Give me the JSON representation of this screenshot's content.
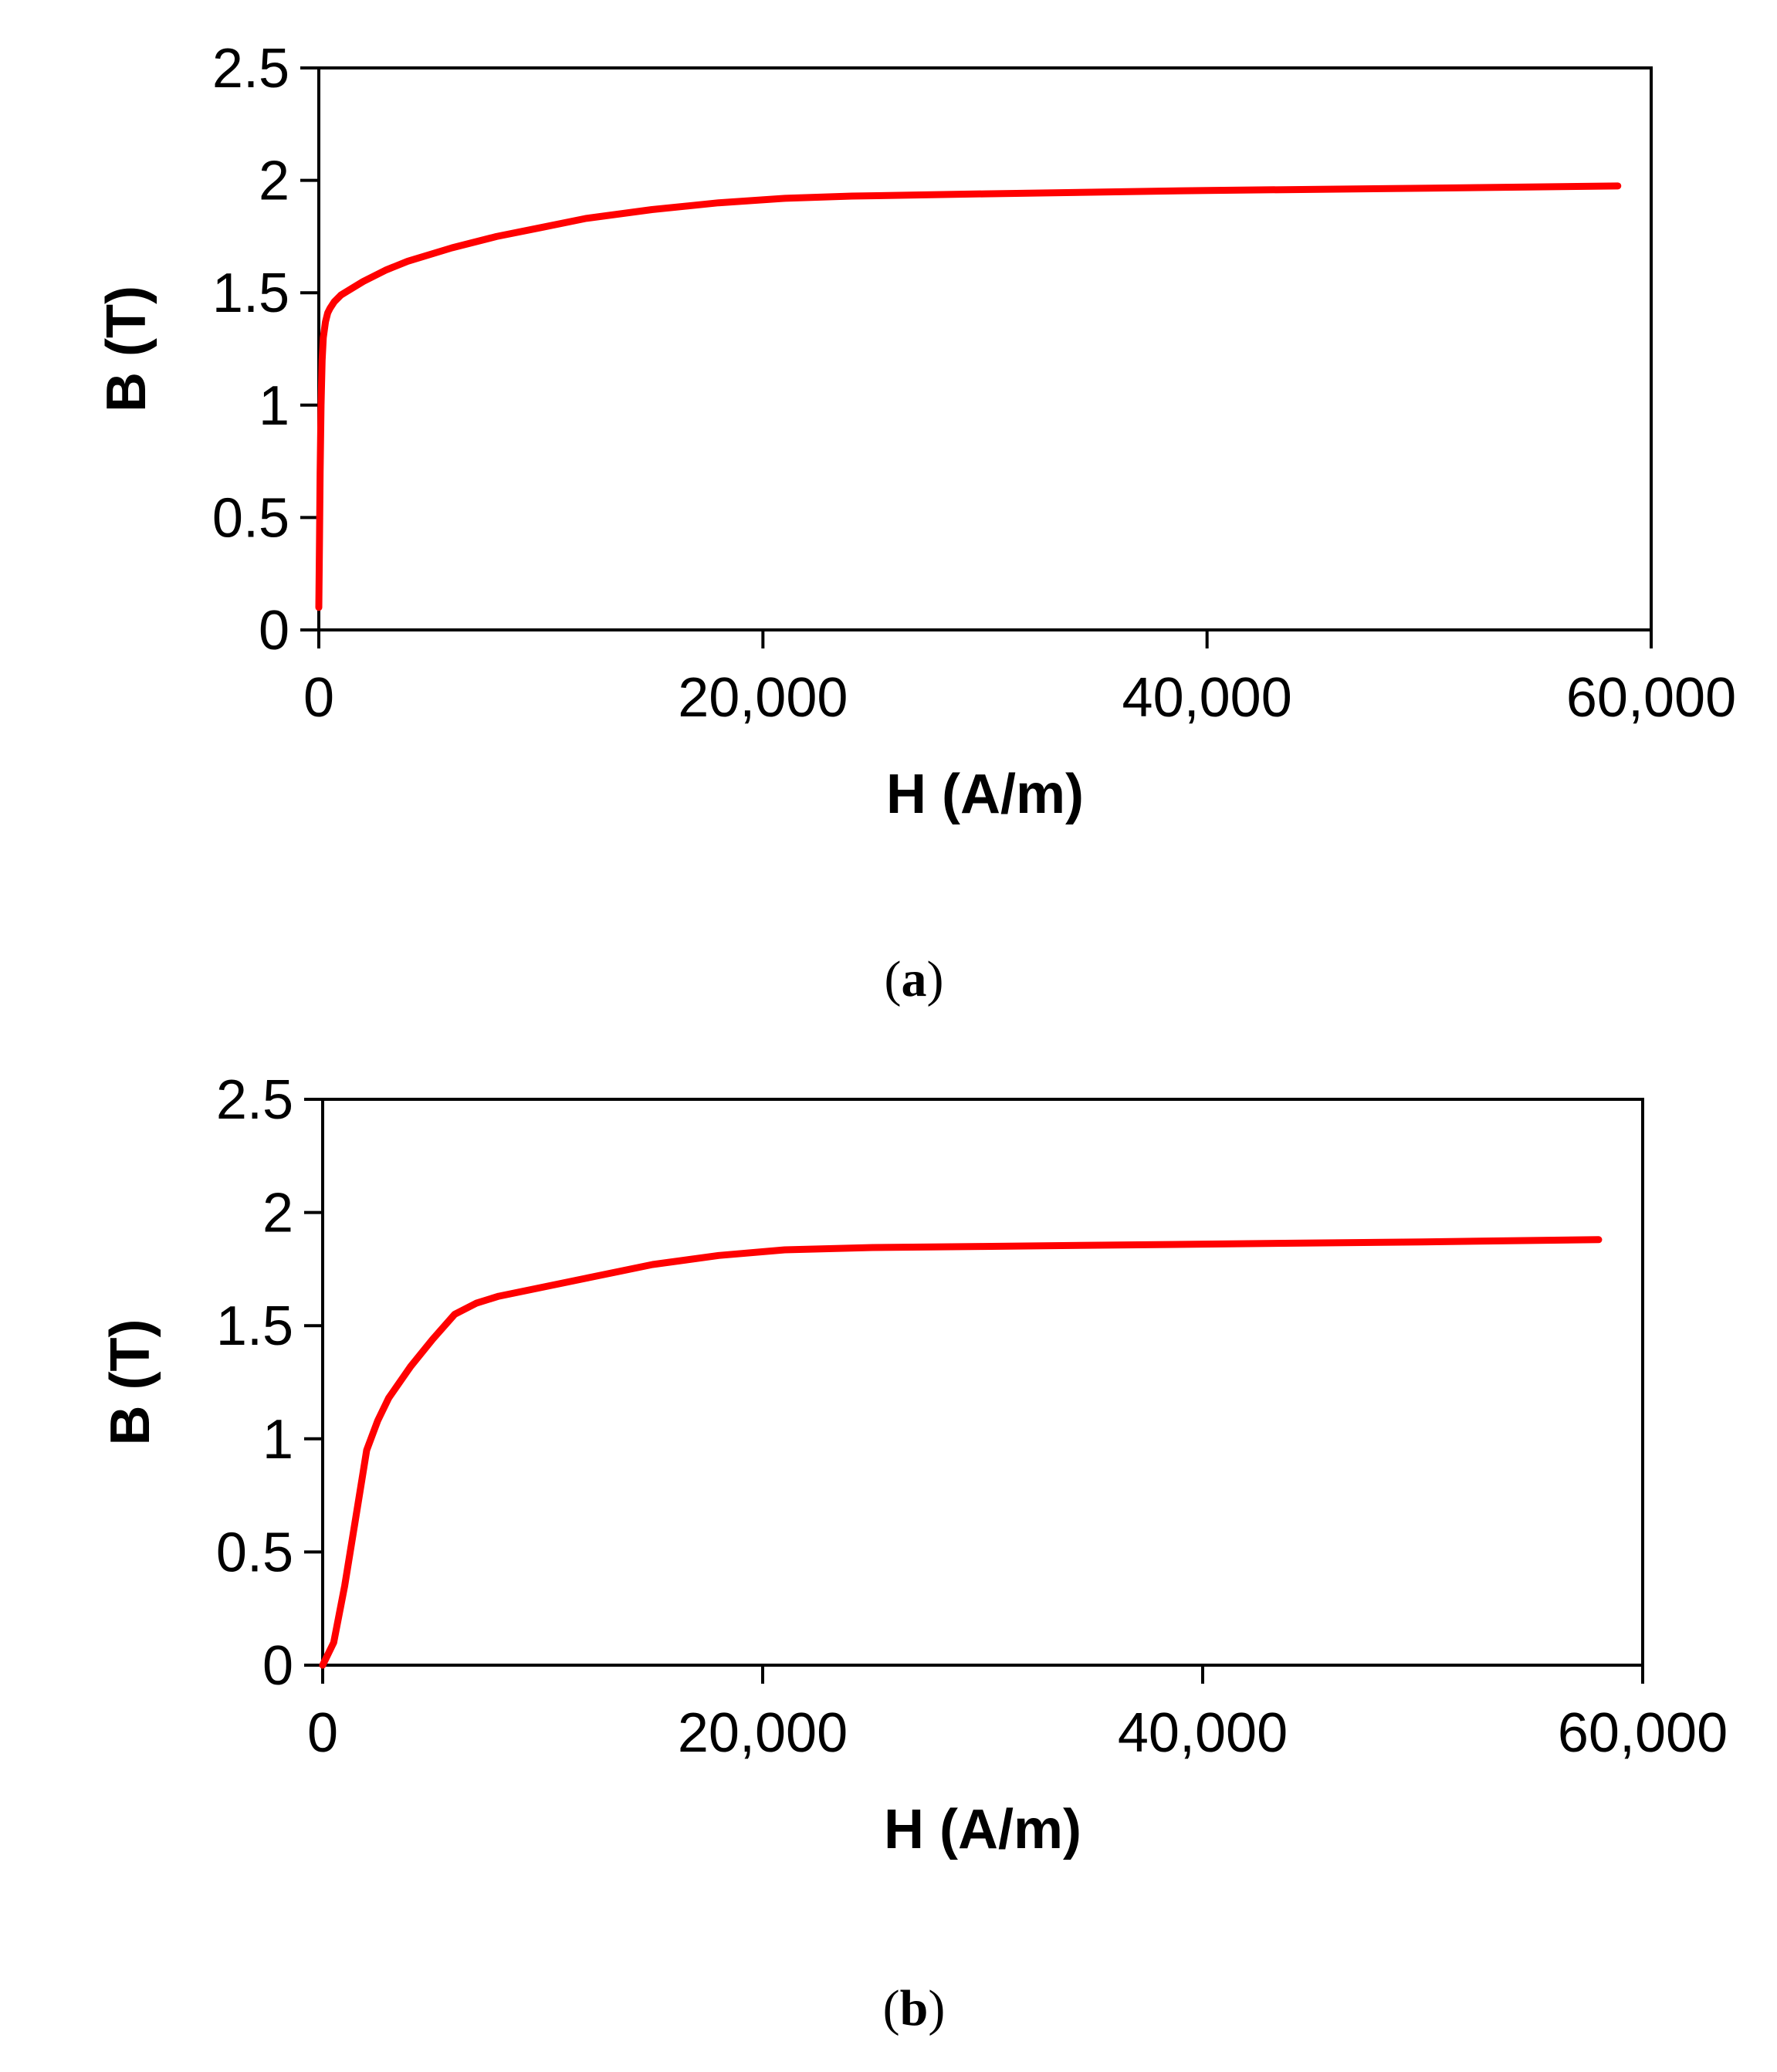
{
  "chart_data": [
    {
      "type": "line",
      "caption_letter": "a",
      "xlabel": "H (A/m)",
      "ylabel": "B (T)",
      "xlim": [
        0,
        60000
      ],
      "ylim": [
        0,
        2.5
      ],
      "x_ticks": [
        0,
        20000,
        40000,
        60000
      ],
      "x_tick_labels": [
        "0",
        "20,000",
        "40,000",
        "60,000"
      ],
      "y_ticks": [
        0,
        0.5,
        1,
        1.5,
        2,
        2.5
      ],
      "y_tick_labels": [
        "0",
        "0.5",
        "1",
        "1.5",
        "2",
        "2.5"
      ],
      "grid": false,
      "line_color": "#ff0000",
      "series": [
        {
          "x": [
            0,
            30,
            60,
            100,
            150,
            200,
            300,
            400,
            500,
            700,
            1000,
            1500,
            2000,
            3000,
            4000,
            6000,
            8000,
            10000,
            12000,
            15000,
            18000,
            21000,
            24000,
            30000,
            40000,
            50000,
            58500
          ],
          "y": [
            0.1,
            0.4,
            0.7,
            1.0,
            1.2,
            1.3,
            1.37,
            1.41,
            1.43,
            1.46,
            1.49,
            1.52,
            1.55,
            1.6,
            1.64,
            1.7,
            1.75,
            1.79,
            1.83,
            1.87,
            1.9,
            1.92,
            1.93,
            1.94,
            1.955,
            1.965,
            1.975
          ]
        }
      ]
    },
    {
      "type": "line",
      "caption_letter": "b",
      "xlabel": "H (A/m)",
      "ylabel": "B (T)",
      "xlim": [
        0,
        60000
      ],
      "ylim": [
        0,
        2.5
      ],
      "x_ticks": [
        0,
        20000,
        40000,
        60000
      ],
      "x_tick_labels": [
        "0",
        "20,000",
        "40,000",
        "60,000"
      ],
      "y_ticks": [
        0,
        0.5,
        1,
        1.5,
        2,
        2.5
      ],
      "y_tick_labels": [
        "0",
        "0.5",
        "1",
        "1.5",
        "2",
        "2.5"
      ],
      "grid": false,
      "line_color": "#ff0000",
      "series": [
        {
          "x": [
            0,
            500,
            1000,
            1500,
            2000,
            2500,
            3000,
            4000,
            5000,
            6000,
            7000,
            8000,
            10000,
            12000,
            15000,
            18000,
            21000,
            25000,
            30000,
            40000,
            50000,
            58000
          ],
          "y": [
            0,
            0.1,
            0.35,
            0.65,
            0.95,
            1.08,
            1.18,
            1.32,
            1.44,
            1.55,
            1.6,
            1.63,
            1.67,
            1.71,
            1.77,
            1.81,
            1.835,
            1.845,
            1.85,
            1.86,
            1.87,
            1.88
          ]
        }
      ]
    }
  ]
}
